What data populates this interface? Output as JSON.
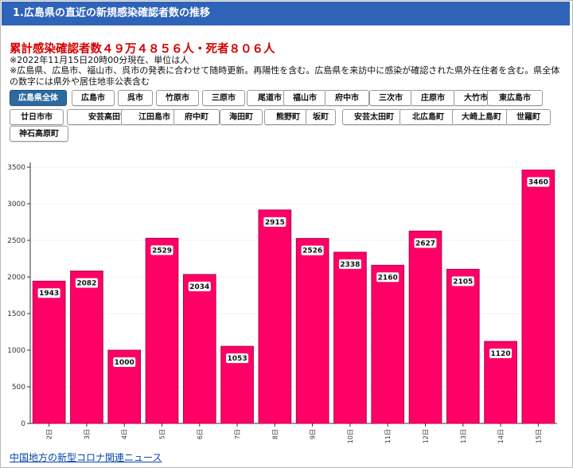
{
  "header": {
    "title": "1.広島県の直近の新規感染確認者数の推移"
  },
  "summary": {
    "headline": "累計感染確認者数４９万４８５６人・死者８０６人",
    "note_line1": "※2022年11月15日20時00分現在、単位は人",
    "note_line2": "※広島県、広島市、福山市、呉市の発表に合わせて随時更新。再陽性を含む。広島県を来訪中に感染が確認された県外在住者を含む。県全体の数字には県外や居住地非公表含む"
  },
  "region_buttons": [
    {
      "label": "広島県全体",
      "active": true
    },
    {
      "label": "広島市"
    },
    {
      "label": "呉市"
    },
    {
      "label": "竹原市"
    },
    {
      "label": "三原市"
    },
    {
      "label": "尾道市"
    },
    {
      "label": "福山市"
    },
    {
      "label": "府中市"
    },
    {
      "label": "三次市"
    },
    {
      "label": "庄原市"
    },
    {
      "label": "大竹市"
    },
    {
      "label": "東広島市"
    },
    {
      "label": "廿日市市"
    },
    {
      "label": "安芸高田市"
    },
    {
      "label": "江田島市"
    },
    {
      "label": "府中町"
    },
    {
      "label": "海田町"
    },
    {
      "label": "熊野町"
    },
    {
      "label": "坂町"
    },
    {
      "label": "安芸太田町"
    },
    {
      "label": "北広島町"
    },
    {
      "label": "大崎上島町"
    },
    {
      "label": "世羅町"
    },
    {
      "label": "神石高原町"
    }
  ],
  "chart_data": {
    "type": "bar",
    "categories": [
      "2日",
      "3日",
      "4日",
      "5日",
      "6日",
      "7日",
      "8日",
      "9日",
      "10日",
      "11日",
      "12日",
      "13日",
      "14日",
      "15日"
    ],
    "values": [
      1943,
      2082,
      1000,
      2529,
      2034,
      1053,
      2915,
      2526,
      2338,
      2160,
      2627,
      2105,
      1120,
      3460
    ],
    "ylim": [
      0,
      3500
    ],
    "yticks": [
      0,
      500,
      1000,
      1500,
      2000,
      2500,
      3000,
      3500
    ],
    "grid": true,
    "data_labels": true,
    "colors": {
      "bar": "#ff0066",
      "bar_border": "#b3004a",
      "label_bg": "#ffffff"
    }
  },
  "footer": {
    "link_label": "中国地方の新型コロナ関連ニュース"
  }
}
